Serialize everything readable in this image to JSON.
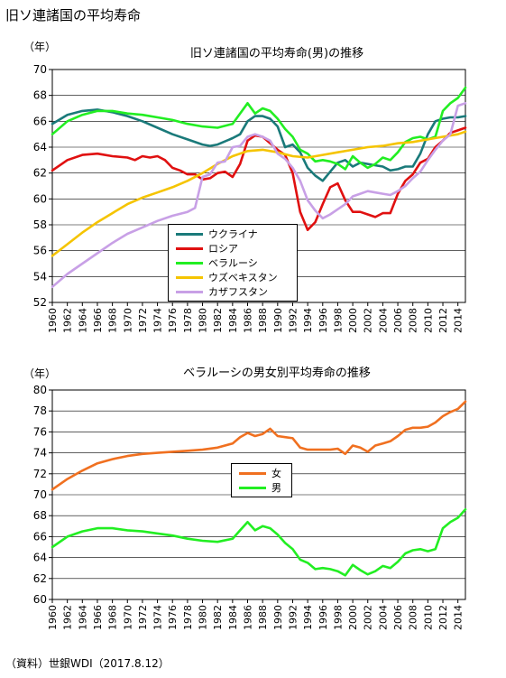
{
  "page_title": "旧ソ連諸国の平均寿命",
  "source_note": "（資料）世銀WDI（2017.8.12）",
  "chart_data": [
    {
      "type": "line",
      "title": "旧ソ連諸国の平均寿命(男)の推移",
      "ylabel": "（年）",
      "xlabel": "",
      "ylim": [
        52,
        70
      ],
      "yticks": [
        52,
        54,
        56,
        58,
        60,
        62,
        64,
        66,
        68,
        70
      ],
      "xlim": [
        1960,
        2015
      ],
      "xticks": [
        1960,
        1962,
        1964,
        1966,
        1968,
        1970,
        1972,
        1974,
        1976,
        1978,
        1980,
        1982,
        1984,
        1986,
        1988,
        1990,
        1992,
        1994,
        1996,
        1998,
        2000,
        2002,
        2004,
        2006,
        2008,
        2010,
        2012,
        2014
      ],
      "grid": true,
      "legend_position": "bottom-center",
      "series": [
        {
          "name": "ウクライナ",
          "color": "#1a7a7a",
          "x": [
            1960,
            1962,
            1964,
            1966,
            1968,
            1970,
            1972,
            1974,
            1976,
            1978,
            1980,
            1981,
            1982,
            1984,
            1985,
            1986,
            1987,
            1988,
            1989,
            1990,
            1991,
            1992,
            1993,
            1994,
            1995,
            1996,
            1997,
            1998,
            1999,
            2000,
            2001,
            2002,
            2003,
            2004,
            2005,
            2006,
            2007,
            2008,
            2009,
            2010,
            2011,
            2012,
            2013,
            2014,
            2015
          ],
          "y": [
            65.8,
            66.5,
            66.8,
            66.9,
            66.7,
            66.4,
            66.0,
            65.5,
            65.0,
            64.6,
            64.2,
            64.1,
            64.2,
            64.7,
            65.0,
            66.0,
            66.4,
            66.4,
            66.2,
            65.6,
            64.0,
            64.2,
            63.6,
            62.4,
            61.8,
            61.4,
            62.1,
            62.8,
            63.0,
            62.5,
            62.8,
            62.7,
            62.6,
            62.5,
            62.2,
            62.3,
            62.5,
            62.5,
            63.5,
            65.0,
            66.0,
            66.2,
            66.3,
            66.3,
            66.4
          ]
        },
        {
          "name": "ロシア",
          "color": "#e01010",
          "x": [
            1960,
            1962,
            1964,
            1966,
            1968,
            1970,
            1971,
            1972,
            1973,
            1974,
            1975,
            1976,
            1977,
            1978,
            1979,
            1980,
            1981,
            1982,
            1983,
            1984,
            1985,
            1986,
            1987,
            1988,
            1989,
            1990,
            1991,
            1992,
            1993,
            1994,
            1995,
            1996,
            1997,
            1998,
            1999,
            2000,
            2001,
            2002,
            2003,
            2004,
            2005,
            2006,
            2007,
            2008,
            2009,
            2010,
            2011,
            2012,
            2013,
            2014,
            2015
          ],
          "y": [
            62.2,
            63.0,
            63.4,
            63.5,
            63.3,
            63.2,
            63.0,
            63.3,
            63.2,
            63.3,
            63.0,
            62.4,
            62.2,
            61.9,
            61.9,
            61.5,
            61.6,
            62.0,
            62.1,
            61.7,
            62.7,
            64.5,
            64.9,
            64.8,
            64.3,
            63.8,
            63.4,
            62.0,
            59.0,
            57.6,
            58.2,
            59.6,
            60.9,
            61.2,
            59.9,
            59.0,
            59.0,
            58.8,
            58.6,
            58.9,
            58.9,
            60.4,
            61.4,
            61.9,
            62.8,
            63.1,
            64.0,
            64.5,
            65.1,
            65.3,
            65.5
          ]
        },
        {
          "name": "ベラルーシ",
          "color": "#22ee22",
          "x": [
            1960,
            1962,
            1964,
            1966,
            1968,
            1970,
            1972,
            1974,
            1976,
            1978,
            1980,
            1982,
            1984,
            1985,
            1986,
            1987,
            1988,
            1989,
            1990,
            1991,
            1992,
            1993,
            1994,
            1995,
            1996,
            1997,
            1998,
            1999,
            2000,
            2001,
            2002,
            2003,
            2004,
            2005,
            2006,
            2007,
            2008,
            2009,
            2010,
            2011,
            2012,
            2013,
            2014,
            2015
          ],
          "y": [
            65.0,
            66.0,
            66.5,
            66.8,
            66.8,
            66.6,
            66.5,
            66.3,
            66.1,
            65.8,
            65.6,
            65.5,
            65.8,
            66.6,
            67.4,
            66.6,
            67.0,
            66.8,
            66.2,
            65.4,
            64.8,
            63.8,
            63.5,
            62.9,
            63.0,
            62.9,
            62.7,
            62.3,
            63.3,
            62.8,
            62.4,
            62.7,
            63.2,
            63.0,
            63.6,
            64.4,
            64.7,
            64.8,
            64.6,
            64.8,
            66.8,
            67.4,
            67.8,
            68.6
          ]
        },
        {
          "name": "ウズベキスタン",
          "color": "#f5c400",
          "x": [
            1960,
            1962,
            1964,
            1966,
            1968,
            1970,
            1972,
            1974,
            1976,
            1978,
            1980,
            1982,
            1984,
            1986,
            1988,
            1990,
            1992,
            1994,
            1996,
            1998,
            2000,
            2002,
            2004,
            2006,
            2008,
            2010,
            2012,
            2014,
            2015
          ],
          "y": [
            55.6,
            56.5,
            57.4,
            58.2,
            58.9,
            59.6,
            60.1,
            60.5,
            60.9,
            61.4,
            62.0,
            62.7,
            63.3,
            63.7,
            63.8,
            63.6,
            63.3,
            63.2,
            63.4,
            63.6,
            63.8,
            64.0,
            64.1,
            64.3,
            64.4,
            64.6,
            64.8,
            65.0,
            65.2
          ]
        },
        {
          "name": "カザフスタン",
          "color": "#c8a0e6",
          "x": [
            1960,
            1962,
            1964,
            1966,
            1968,
            1970,
            1972,
            1974,
            1976,
            1978,
            1979,
            1980,
            1981,
            1982,
            1983,
            1984,
            1985,
            1986,
            1987,
            1988,
            1989,
            1990,
            1991,
            1992,
            1993,
            1994,
            1995,
            1996,
            1997,
            1998,
            1999,
            2000,
            2001,
            2002,
            2003,
            2004,
            2005,
            2006,
            2007,
            2008,
            2009,
            2010,
            2011,
            2012,
            2013,
            2014,
            2015
          ],
          "y": [
            53.2,
            54.2,
            55.0,
            55.8,
            56.6,
            57.3,
            57.8,
            58.3,
            58.7,
            59.0,
            59.3,
            61.7,
            61.9,
            62.8,
            62.9,
            64.0,
            64.1,
            64.8,
            65.0,
            64.8,
            64.5,
            63.5,
            63.1,
            62.4,
            61.4,
            59.9,
            59.1,
            58.5,
            58.8,
            59.2,
            59.6,
            60.2,
            60.4,
            60.6,
            60.5,
            60.4,
            60.3,
            60.6,
            61.0,
            61.6,
            62.1,
            63.0,
            63.8,
            64.5,
            65.0,
            67.2,
            67.4
          ]
        }
      ]
    },
    {
      "type": "line",
      "title": "ベラルーシの男女別平均寿命の推移",
      "ylabel": "（年）",
      "xlabel": "",
      "ylim": [
        60,
        80
      ],
      "yticks": [
        60,
        62,
        64,
        66,
        68,
        70,
        72,
        74,
        76,
        78,
        80
      ],
      "xlim": [
        1960,
        2015
      ],
      "xticks": [
        1960,
        1962,
        1964,
        1966,
        1968,
        1970,
        1972,
        1974,
        1976,
        1978,
        1980,
        1982,
        1984,
        1986,
        1988,
        1990,
        1992,
        1994,
        1996,
        1998,
        2000,
        2002,
        2004,
        2006,
        2008,
        2010,
        2012,
        2014
      ],
      "grid": true,
      "legend_position": "center",
      "series": [
        {
          "name": "女",
          "color": "#f07020",
          "x": [
            1960,
            1962,
            1964,
            1966,
            1968,
            1970,
            1972,
            1974,
            1976,
            1978,
            1980,
            1982,
            1984,
            1985,
            1986,
            1987,
            1988,
            1989,
            1990,
            1991,
            1992,
            1993,
            1994,
            1995,
            1996,
            1997,
            1998,
            1999,
            2000,
            2001,
            2002,
            2003,
            2004,
            2005,
            2006,
            2007,
            2008,
            2009,
            2010,
            2011,
            2012,
            2013,
            2014,
            2015
          ],
          "y": [
            70.5,
            71.5,
            72.3,
            73.0,
            73.4,
            73.7,
            73.9,
            74.0,
            74.1,
            74.2,
            74.3,
            74.5,
            74.9,
            75.5,
            75.9,
            75.6,
            75.8,
            76.3,
            75.6,
            75.5,
            75.4,
            74.5,
            74.3,
            74.3,
            74.3,
            74.3,
            74.4,
            73.9,
            74.7,
            74.5,
            74.1,
            74.7,
            74.9,
            75.1,
            75.6,
            76.2,
            76.4,
            76.4,
            76.5,
            76.9,
            77.5,
            77.9,
            78.2,
            78.9
          ]
        },
        {
          "name": "男",
          "color": "#22ee22",
          "x": [
            1960,
            1962,
            1964,
            1966,
            1968,
            1970,
            1972,
            1974,
            1976,
            1978,
            1980,
            1982,
            1984,
            1985,
            1986,
            1987,
            1988,
            1989,
            1990,
            1991,
            1992,
            1993,
            1994,
            1995,
            1996,
            1997,
            1998,
            1999,
            2000,
            2001,
            2002,
            2003,
            2004,
            2005,
            2006,
            2007,
            2008,
            2009,
            2010,
            2011,
            2012,
            2013,
            2014,
            2015
          ],
          "y": [
            65.0,
            66.0,
            66.5,
            66.8,
            66.8,
            66.6,
            66.5,
            66.3,
            66.1,
            65.8,
            65.6,
            65.5,
            65.8,
            66.6,
            67.4,
            66.6,
            67.0,
            66.8,
            66.2,
            65.4,
            64.8,
            63.8,
            63.5,
            62.9,
            63.0,
            62.9,
            62.7,
            62.3,
            63.3,
            62.8,
            62.4,
            62.7,
            63.2,
            63.0,
            63.6,
            64.4,
            64.7,
            64.8,
            64.6,
            64.8,
            66.8,
            67.4,
            67.8,
            68.6
          ]
        }
      ]
    }
  ]
}
